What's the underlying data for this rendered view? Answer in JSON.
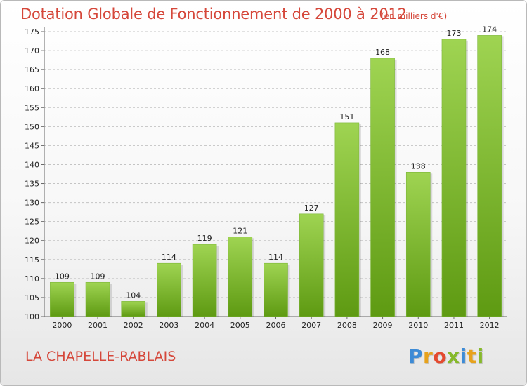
{
  "title": "Dotation Globale de Fonctionnement de 2000 à 2012",
  "subtitle": "(en milliers d'€)",
  "commune": "LA CHAPELLE-RABLAIS",
  "logo": {
    "letters": [
      "P",
      "r",
      "o",
      "x",
      "i",
      "t",
      "i"
    ],
    "colors": [
      "#3d8bd6",
      "#e7a21c",
      "#e44a2f",
      "#86b92a",
      "#3d8bd6",
      "#e7a21c",
      "#86b92a"
    ]
  },
  "colors": {
    "bar_top": "#9fd452",
    "bar_bottom": "#5e9a12",
    "text_accent": "#d5473a"
  },
  "chart_data": {
    "type": "bar",
    "title": "Dotation Globale de Fonctionnement de 2000 à 2012",
    "subtitle": "(en milliers d'€)",
    "categories": [
      "2000",
      "2001",
      "2002",
      "2003",
      "2004",
      "2005",
      "2006",
      "2007",
      "2008",
      "2009",
      "2010",
      "2011",
      "2012"
    ],
    "values": [
      109,
      109,
      104,
      114,
      119,
      121,
      114,
      127,
      151,
      168,
      138,
      173,
      174
    ],
    "ylim": [
      100,
      175
    ],
    "yticks": [
      100,
      105,
      110,
      115,
      120,
      125,
      130,
      135,
      140,
      145,
      150,
      155,
      160,
      165,
      170,
      175
    ],
    "grid": true,
    "xlabel": "",
    "ylabel": ""
  }
}
